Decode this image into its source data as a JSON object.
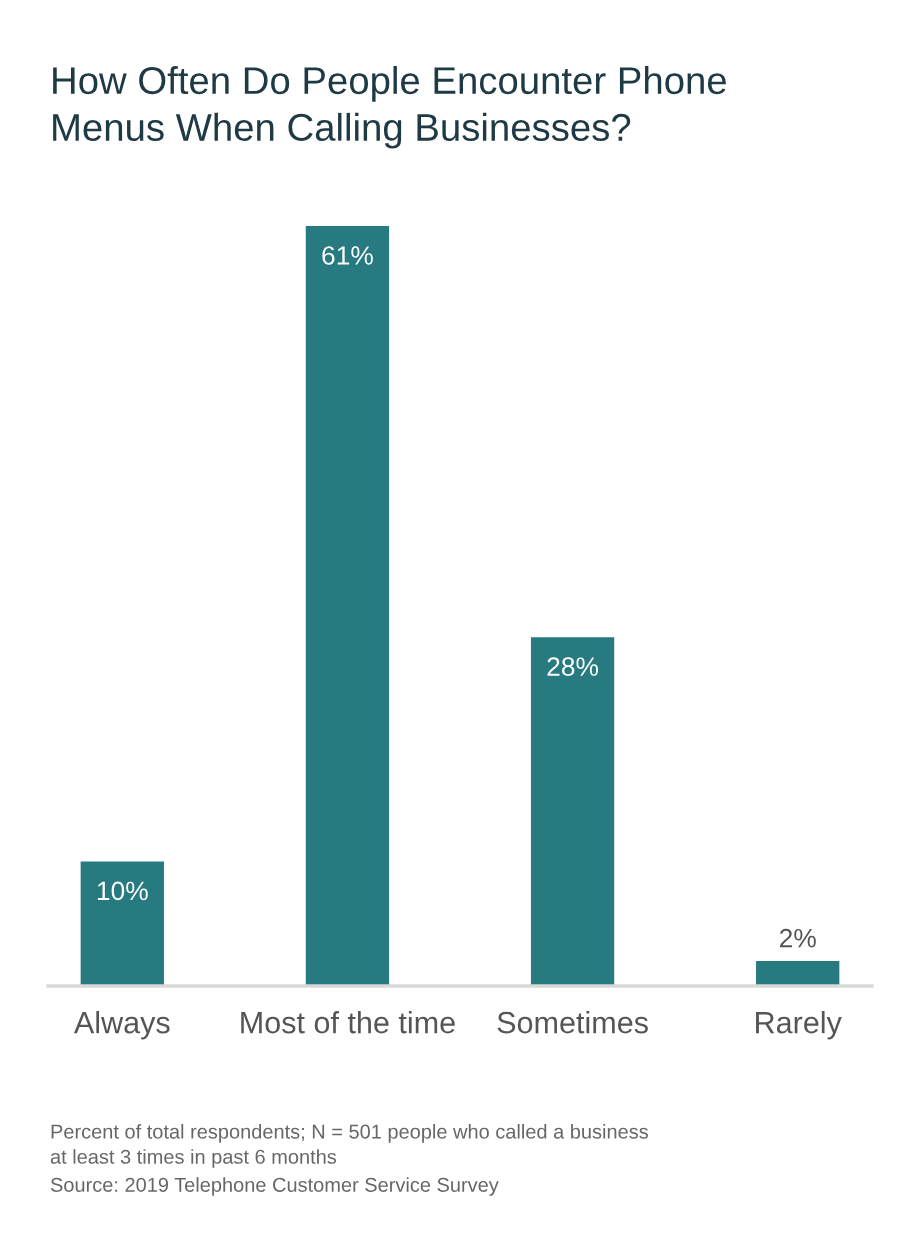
{
  "chart_data": {
    "type": "bar",
    "title": "How Often Do People Encounter Phone Menus When Calling Businesses?",
    "categories": [
      "Always",
      "Most of the time",
      "Sometimes",
      "Rarely"
    ],
    "values": [
      10,
      61,
      28,
      2
    ],
    "value_labels": [
      "10%",
      "61%",
      "28%",
      "2%"
    ],
    "color": "#267a80",
    "annotations": [
      "Percent of total respondents; N = 501 people who called a business at least 3 times in past 6 months",
      "Source: 2019 Telephone Customer Service Survey"
    ]
  }
}
